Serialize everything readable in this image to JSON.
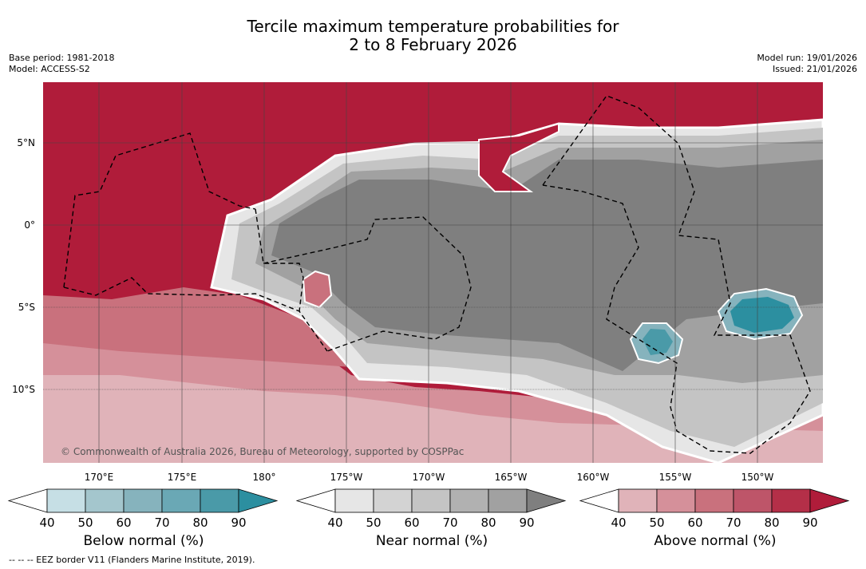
{
  "title_line1": "Tercile maximum temperature probabilities for",
  "title_line2": "2 to 8 February 2026",
  "base_period": "Base period: 1981-2018",
  "model": "Model: ACCESS-S2",
  "model_run": "Model run: 19/01/2026",
  "issued": "Issued: 21/01/2026",
  "copyright": "© Commonwealth of Australia 2026, Bureau of Meteorology, supported by COSPPac",
  "footnote": "--  --  -- EEZ border V11 (Flanders Marine Institute, 2019).",
  "lat_labels": [
    "5°N",
    "0°",
    "5°S",
    "10°S"
  ],
  "lon_labels": [
    "170°E",
    "175°E",
    "180°",
    "175°W",
    "170°W",
    "165°W",
    "160°W",
    "155°W",
    "150°W"
  ],
  "colorbars": [
    {
      "label": "Below normal (%)",
      "ticks": [
        "40",
        "50",
        "60",
        "70",
        "80",
        "90"
      ],
      "colors": [
        "#ffffff",
        "#c6dfe5",
        "#a4c6cd",
        "#86b3bd",
        "#6aa8b5",
        "#4a9aa8",
        "#2c8fa0"
      ]
    },
    {
      "label": "Near normal (%)",
      "ticks": [
        "40",
        "50",
        "60",
        "70",
        "80",
        "90"
      ],
      "colors": [
        "#ffffff",
        "#e6e6e6",
        "#d3d3d3",
        "#c4c4c4",
        "#b1b1b1",
        "#a1a1a1",
        "#7f7f7f"
      ]
    },
    {
      "label": "Above normal (%)",
      "ticks": [
        "40",
        "50",
        "60",
        "70",
        "80",
        "90"
      ],
      "colors": [
        "#ffffff",
        "#e0b3b9",
        "#d5909a",
        "#c9717d",
        "#be5569",
        "#b42f48",
        "#b01c3a"
      ]
    }
  ],
  "palette": {
    "above_90": "#b01c3a",
    "above_80": "#b42f48",
    "above_70": "#be5569",
    "above_60": "#c9717d",
    "above_50": "#d5909a",
    "above_40": "#e0b3b9",
    "near_90": "#7f7f7f",
    "near_80": "#a1a1a1",
    "near_70": "#b1b1b1",
    "near_60": "#c4c4c4",
    "near_50": "#d3d3d3",
    "near_40": "#e6e6e6",
    "below_90": "#2c8fa0",
    "below_80": "#4a9aa8",
    "below_70": "#6aa8b5",
    "below_60": "#86b3bd"
  }
}
